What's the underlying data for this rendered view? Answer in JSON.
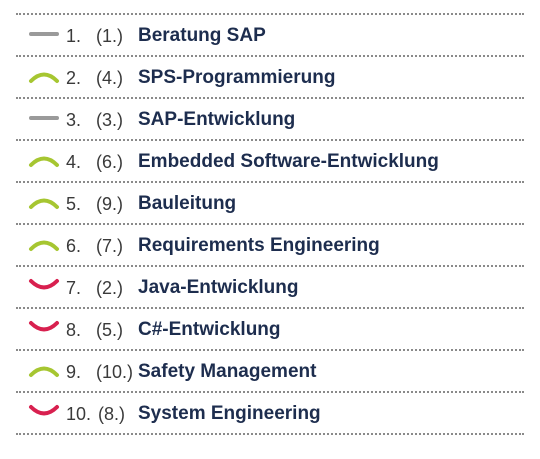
{
  "colors": {
    "same": "#9a9a9a",
    "up": "#a6c631",
    "down": "#d8204f",
    "title": "#1d2d4e",
    "rank": "#3a3a3a"
  },
  "rankings": [
    {
      "rank": "1.",
      "previous": "(1.)",
      "title": "Beratung SAP",
      "trend": "same",
      "trend_icon": "dash-icon"
    },
    {
      "rank": "2.",
      "previous": "(4.)",
      "title": "SPS-Programmierung",
      "trend": "up",
      "trend_icon": "chevron-up-icon"
    },
    {
      "rank": "3.",
      "previous": "(3.)",
      "title": "SAP-Entwicklung",
      "trend": "same",
      "trend_icon": "dash-icon"
    },
    {
      "rank": "4.",
      "previous": "(6.)",
      "title": "Embedded Software-Entwicklung",
      "trend": "up",
      "trend_icon": "chevron-up-icon"
    },
    {
      "rank": "5.",
      "previous": "(9.)",
      "title": "Bauleitung",
      "trend": "up",
      "trend_icon": "chevron-up-icon"
    },
    {
      "rank": "6.",
      "previous": "(7.)",
      "title": "Requirements Engineering",
      "trend": "up",
      "trend_icon": "chevron-up-icon"
    },
    {
      "rank": "7.",
      "previous": "(2.)",
      "title": "Java-Entwicklung",
      "trend": "down",
      "trend_icon": "chevron-down-icon"
    },
    {
      "rank": "8.",
      "previous": "(5.)",
      "title": "C#-Entwicklung",
      "trend": "down",
      "trend_icon": "chevron-down-icon"
    },
    {
      "rank": "9.",
      "previous": "(10.)",
      "title": "Safety Management",
      "trend": "up",
      "trend_icon": "chevron-up-icon"
    },
    {
      "rank": "10.",
      "previous": "(8.)",
      "title": "System Engineering",
      "trend": "down",
      "trend_icon": "chevron-down-icon"
    }
  ]
}
